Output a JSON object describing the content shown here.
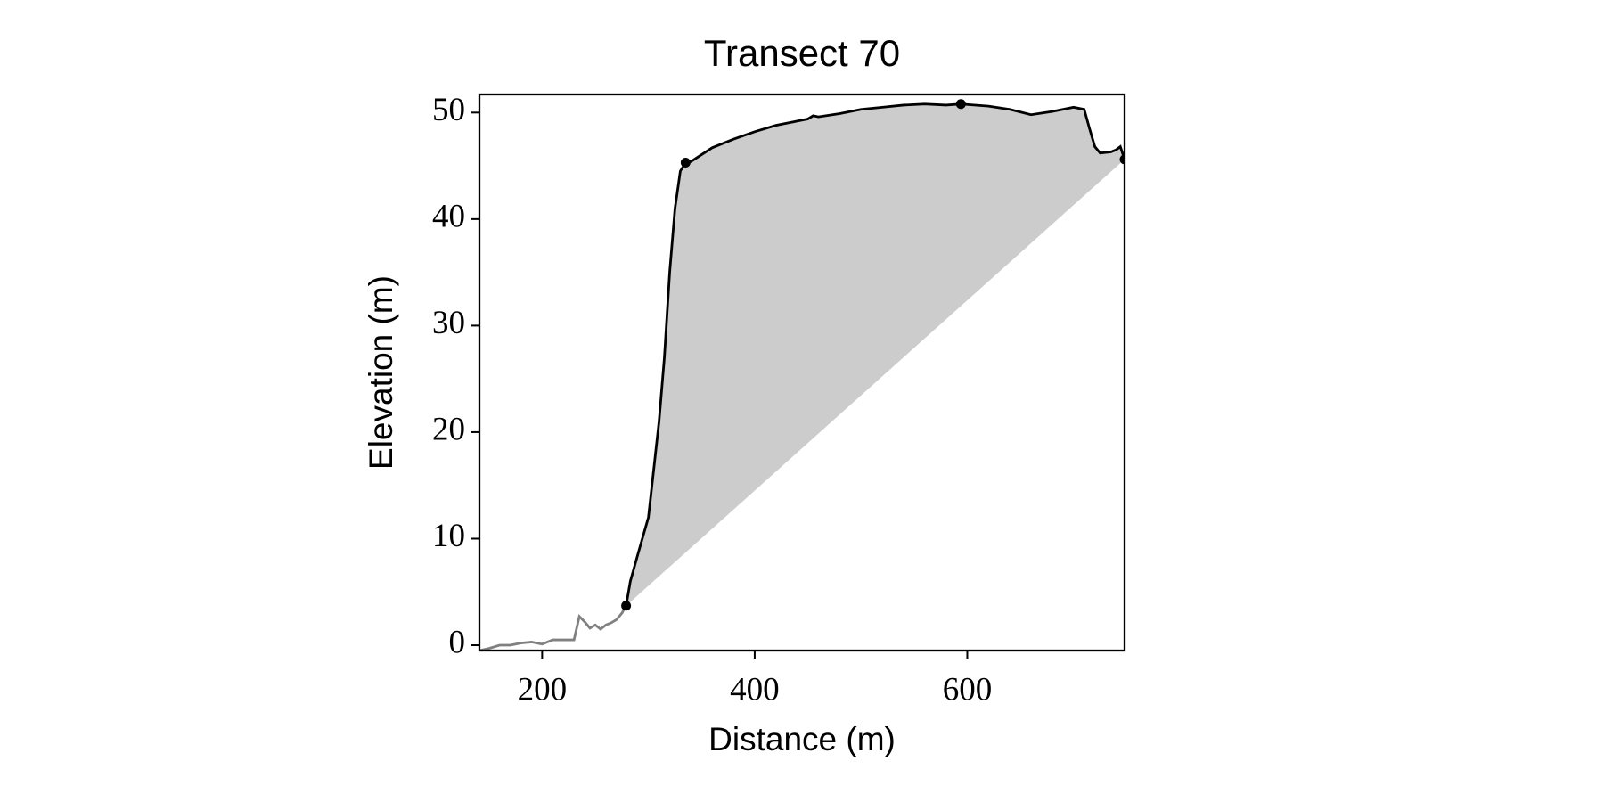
{
  "chart_data": {
    "type": "line",
    "title": "Transect 70",
    "x_label": "Distance (m)",
    "y_label": "Elevation (m)",
    "xlim": [
      141,
      748
    ],
    "ylim": [
      -0.5,
      51.7
    ],
    "xticks": [
      200,
      400,
      600
    ],
    "yticks": [
      0,
      10,
      20,
      30,
      40,
      50
    ],
    "fill_color": "#cccccc",
    "series": [
      {
        "color": "#808080",
        "x": [
          141,
          150,
          160,
          170,
          180,
          190,
          200,
          210,
          220,
          230,
          235,
          240,
          245,
          250,
          255,
          260,
          265,
          270,
          275,
          279
        ],
        "values": [
          -0.5,
          -0.3,
          0,
          0,
          0.2,
          0.3,
          0.1,
          0.5,
          0.5,
          0.5,
          2.7,
          2.2,
          1.6,
          1.9,
          1.5,
          1.9,
          2.1,
          2.4,
          3.0,
          3.7
        ]
      },
      {
        "color": "#000000",
        "fill": true,
        "x": [
          279,
          283,
          290,
          300,
          310,
          315,
          320,
          325,
          330,
          335,
          340,
          360,
          380,
          400,
          420,
          440,
          450,
          455,
          460,
          480,
          500,
          520,
          540,
          560,
          580,
          594,
          620,
          640,
          660,
          680,
          700,
          710,
          715,
          720,
          725,
          735,
          740,
          744,
          748
        ],
        "values": [
          3.7,
          6,
          8.5,
          12,
          21,
          27,
          35,
          41,
          44.5,
          45.3,
          45.4,
          46.7,
          47.5,
          48.2,
          48.8,
          49.2,
          49.4,
          49.7,
          49.6,
          49.9,
          50.3,
          50.5,
          50.7,
          50.8,
          50.7,
          50.8,
          50.6,
          50.3,
          49.8,
          50.1,
          50.5,
          50.3,
          48.5,
          46.8,
          46.2,
          46.3,
          46.5,
          46.8,
          45.6
        ]
      }
    ],
    "markers": {
      "color": "#000000",
      "x": [
        279,
        335,
        594,
        748
      ],
      "values": [
        3.7,
        45.3,
        50.8,
        45.6
      ]
    }
  }
}
